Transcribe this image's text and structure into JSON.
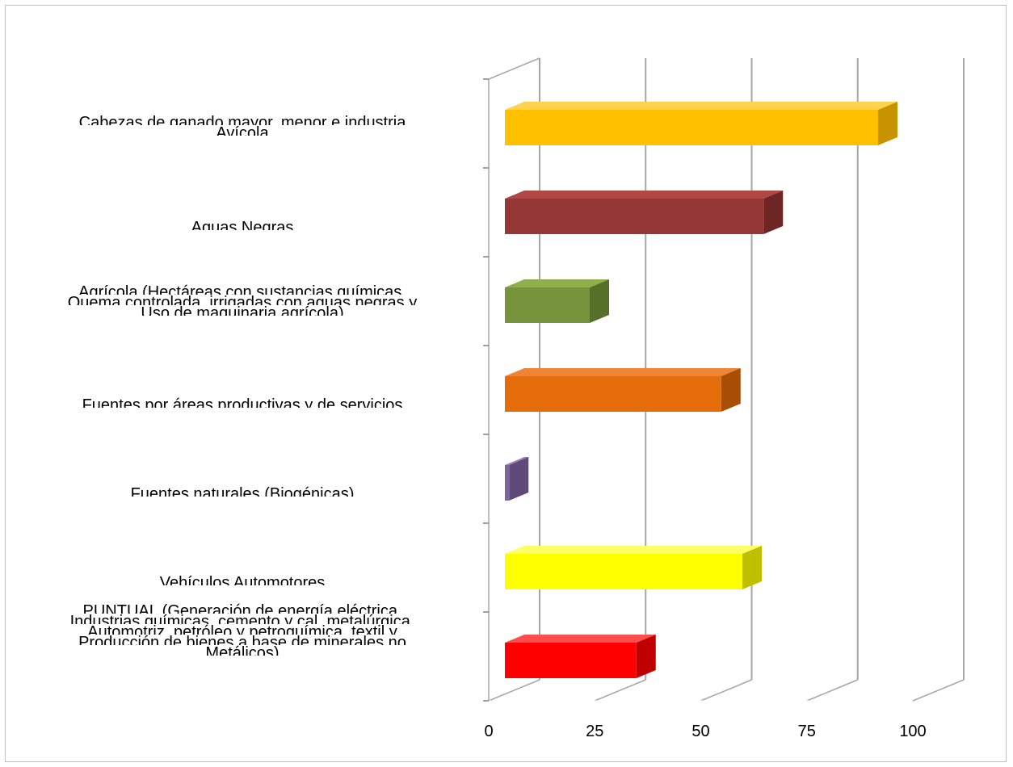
{
  "chart_data": {
    "type": "bar",
    "orientation": "horizontal",
    "style": "3d",
    "categories": [
      [
        "Cabezas de ganado mayor, menor e industria",
        "Avícola"
      ],
      [
        "Aguas Negras"
      ],
      [
        "Agrícola (Hectáreas con sustancias químicas,",
        "Quema controlada, irrigadas con aguas negras y",
        "Uso de maquinaria agrícola)"
      ],
      [
        "Fuentes por áreas productivas y de servicios"
      ],
      [
        "Fuentes naturales (Biogénicas)"
      ],
      [
        "Vehículos Automotores"
      ],
      [
        "PUNTUAL (Generación de energía eléctrica,",
        "Industrias químicas, cemento y cal, metalúrgica,",
        "Automotriz, petróleo y petroquímica, textil y",
        "Producción de bienes a base de minerales no",
        "Metálicos)"
      ]
    ],
    "values": [
      88,
      61,
      20,
      51,
      1,
      56,
      31
    ],
    "colors": [
      "#FFC000",
      "#953735",
      "#77933C",
      "#E46C0A",
      "#8064A2",
      "#FFFF00",
      "#FF0000"
    ],
    "side_colors": [
      "#C79400",
      "#6E2624",
      "#567029",
      "#A94E06",
      "#5F4A7A",
      "#BFBF00",
      "#BF0000"
    ],
    "top_colors": [
      "#FFD24D",
      "#B24845",
      "#8FAF4A",
      "#F08436",
      "#9A83BA",
      "#FFFF66",
      "#FF4D4D"
    ],
    "xlim": [
      0,
      100
    ],
    "xticks": [
      "0",
      "25",
      "50",
      "75",
      "100"
    ],
    "xtick_values": [
      0,
      25,
      50,
      75,
      100
    ],
    "grid": true,
    "title": "",
    "xlabel": "",
    "ylabel": ""
  }
}
